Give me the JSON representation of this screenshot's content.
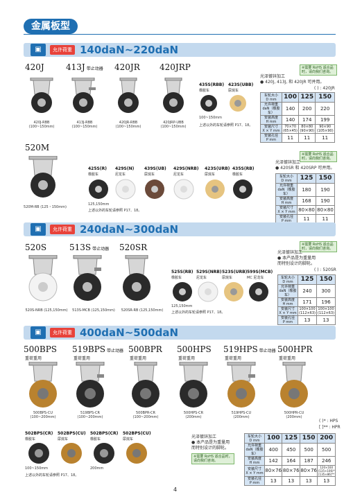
{
  "page_title": "金属板型",
  "page_number": "4",
  "load_label": "允许荷重",
  "sections": [
    {
      "load_range": "140daN~220daN",
      "models": [
        {
          "name": "420J",
          "tag": "",
          "caption": "420J-RBB\n(100~150mm)"
        },
        {
          "name": "413J",
          "tag": "带止动器",
          "caption": "413J-RBB\n(100~150mm)"
        },
        {
          "name": "420JR",
          "tag": "",
          "caption": "420JR-RBB\n(100~150mm)"
        },
        {
          "name": "420JRP",
          "tag": "",
          "caption": "420JRP-UBB\n(100~150mm)"
        }
      ],
      "wheels": [
        {
          "code": "435S(RBB)",
          "material": "橡胶车"
        },
        {
          "code": "423S(UBB)",
          "material": "尿烷车"
        }
      ],
      "size_range": "100~150mm",
      "ref_note": "上述以外的车轮请参照 P17、18。",
      "green_note": "※需要 RoHS 适合品时，请向我们咨询。",
      "finish": "光泽镀锌加工",
      "applies": "● 420J, 413J, 和 420JR 可并用。",
      "model_ref": "(   ) : 420JR",
      "table": {
        "headers": [
          "车轮大小\nD mm",
          "100",
          "125",
          "150"
        ],
        "rows": [
          [
            "允许荷重\ndaN（橡胶车）",
            "140",
            "200",
            "220"
          ],
          [
            "安装高度\nH mm",
            "140",
            "174",
            "199"
          ],
          [
            "安装尺寸\nX × Y mm",
            "70×70\n(65×45)",
            "80×80\n(90×90)",
            "90×90\n(105×90)"
          ],
          [
            "安装孔径\nP mm",
            "11",
            "11",
            "11"
          ]
        ]
      }
    },
    {
      "model": {
        "name": "520M",
        "caption": "520M-RB (125・150mm)"
      },
      "wheels": [
        {
          "code": "425S(R)",
          "material": "橡胶车"
        },
        {
          "code": "429S(N)",
          "material": "尼龙车"
        },
        {
          "code": "439S(UB)",
          "material": "尿烷车"
        },
        {
          "code": "429S(NRB)",
          "material": "尼龙车"
        },
        {
          "code": "423S(URB)",
          "material": "尿烷车"
        },
        {
          "code": "435S(RB)",
          "material": "橡胶车"
        }
      ],
      "size_range": "125,150mm",
      "ref_note": "上述以外的车轮请参照 P17、18。",
      "green_note": "※需要 RoHS 适合品时，请向我们咨询。",
      "finish": "光泽镀锌加工",
      "applies": "● 420SR 和 420SRP 可并用。",
      "table": {
        "headers": [
          "车轮大小\nD mm",
          "125",
          "150"
        ],
        "rows": [
          [
            "允许荷重\ndaN（橡胶车）",
            "180",
            "190"
          ],
          [
            "安装高度\nH mm",
            "168",
            "190"
          ],
          [
            "安装尺寸\nX × Y mm",
            "80×80",
            "80×80"
          ],
          [
            "安装孔径\nP mm",
            "11",
            "11"
          ]
        ]
      }
    },
    {
      "load_range": "240daN~300daN",
      "models": [
        {
          "name": "520S",
          "tag": "",
          "caption": "520S-NRB (125,150mm)"
        },
        {
          "name": "513S",
          "tag": "带止动器",
          "caption": "513S-MCB (125,150mm)"
        },
        {
          "name": "520SR",
          "tag": "",
          "caption": "520SR-RB (125,150mm)"
        }
      ],
      "wheels": [
        {
          "code": "525S(RB)",
          "material": "橡胶车"
        },
        {
          "code": "529S(NRB)",
          "material": "尼龙车"
        },
        {
          "code": "523S(URB)",
          "material": "尿烷车"
        },
        {
          "code": "599S(MCB)",
          "material": "MC 尼龙车"
        }
      ],
      "size_range": "125,150mm",
      "ref_note": "上述以外的车轮请参照 P17、18。",
      "green_note": "※需要 RoHS 适合品时，请向我们咨询。",
      "finish": "光泽镀锌加工",
      "applies": "● 本产品是为重量用\n  而特别设计的脚轮。",
      "model_ref": "(   ) : 520SR",
      "table": {
        "headers": [
          "车轮大小\nD mm",
          "125",
          "150"
        ],
        "rows": [
          [
            "允许荷重\ndaN（橡胶车）",
            "240",
            "300"
          ],
          [
            "安装高度\nH mm",
            "171",
            "196"
          ],
          [
            "安装尺寸\nX × Y mm",
            "100×100\n(112×63)",
            "100×100\n(112×63)"
          ],
          [
            "安装孔径\nP mm",
            "13",
            "13"
          ]
        ]
      }
    },
    {
      "load_range": "400daN~500daN",
      "models": [
        {
          "name": "500BPS",
          "tag": "",
          "sub": "重荷重用",
          "caption": "500BPS-CU\n(100~200mm)"
        },
        {
          "name": "519BPS",
          "tag": "带止动器",
          "sub": "重荷重用",
          "caption": "519BPS-CR\n(100~200mm)"
        },
        {
          "name": "500BPR",
          "tag": "",
          "sub": "重荷重用",
          "caption": "500BPR-CR\n(100~200mm)"
        },
        {
          "name": "500HPS",
          "tag": "",
          "sub": "重荷重用",
          "caption": "500HPS-CR\n(200mm)"
        },
        {
          "name": "519HPS",
          "tag": "带止动器",
          "sub": "重荷重用",
          "caption": "519HPS-CU\n(200mm)"
        },
        {
          "name": "500HPR",
          "tag": "",
          "sub": "重荷重用",
          "caption": "500HPR-CU\n(200mm)"
        }
      ],
      "wheels": [
        {
          "code": "502BPS(CR)",
          "material": "橡胶车"
        },
        {
          "code": "502BPS(CU)",
          "material": "尿烷车"
        },
        {
          "code": "502BPS(CR)",
          "material": "橡胶车"
        },
        {
          "code": "502BPS(CU)",
          "material": "尿烷车"
        }
      ],
      "size_range_a": "100~150mm",
      "size_range_b": "200mm",
      "ref_note": "上述以外的车轮请参照 P17、18。",
      "green_note": "※需要 RoHS 适合品时，请向我们咨询。",
      "finish": "光泽镀锌加工",
      "applies": "● 本产品是为重量用\n  而特别设计的脚轮。",
      "model_ref_a": "(   )* : HPS",
      "model_ref_b": "[   ]** : HPR",
      "table": {
        "headers": [
          "车轮大小\nD mm",
          "100",
          "125",
          "150",
          "200"
        ],
        "rows": [
          [
            "允许荷重\ndaN（橡胶车）",
            "400",
            "450",
            "500",
            "500"
          ],
          [
            "安装高度\nH mm",
            "142",
            "164",
            "187",
            "246"
          ],
          [
            "安装尺寸\nX × Y mm",
            "80×76",
            "80×76",
            "80×76",
            "120×160\n(135×106)*\n[135×86]**"
          ],
          [
            "安装孔径\nP mm",
            "13",
            "13",
            "13",
            "13"
          ]
        ]
      }
    }
  ]
}
